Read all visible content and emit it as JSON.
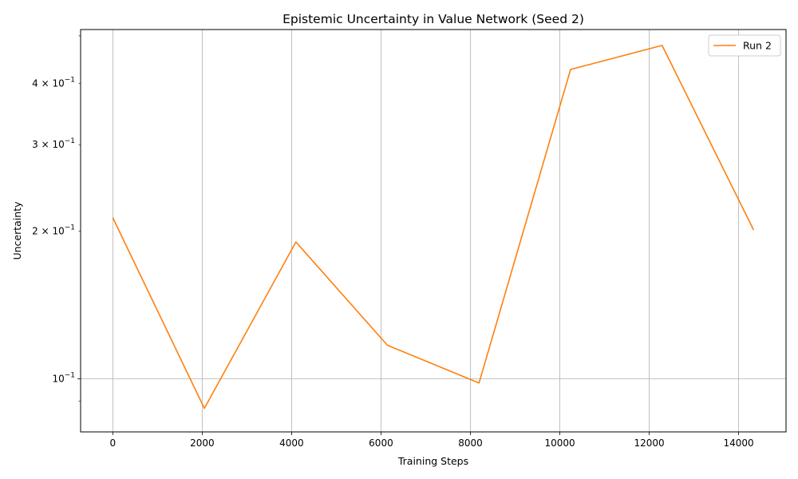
{
  "chart_data": {
    "type": "line",
    "title": "Epistemic Uncertainty in Value Network (Seed 2)",
    "xlabel": "Training Steps",
    "ylabel": "Uncertainty",
    "yscale": "log",
    "xlim": [
      -720,
      15060
    ],
    "ylim": [
      0.0779,
      0.515
    ],
    "x_ticks": [
      0,
      2000,
      4000,
      6000,
      8000,
      10000,
      12000,
      14000
    ],
    "x_tick_labels": [
      "0",
      "2000",
      "4000",
      "6000",
      "8000",
      "10000",
      "12000",
      "14000"
    ],
    "y_major_ticks": [
      0.1
    ],
    "y_minor_ticks": [
      0.09,
      0.2,
      0.3,
      0.4,
      0.5
    ],
    "y_tick_labels": [
      {
        "value": 0.1,
        "base": "10",
        "exp": "−1",
        "coef": ""
      },
      {
        "value": 0.2,
        "base": "10",
        "exp": "−1",
        "coef": "2 × "
      },
      {
        "value": 0.3,
        "base": "10",
        "exp": "−1",
        "coef": "3 × "
      },
      {
        "value": 0.4,
        "base": "10",
        "exp": "−1",
        "coef": "4 × "
      }
    ],
    "grid": true,
    "grid_axis": "x major, y major",
    "legend_position": "top-right",
    "series": [
      {
        "name": "Run 2",
        "color": "#ff7f0e",
        "x": [
          0,
          2048,
          4096,
          6144,
          8192,
          10240,
          12288,
          14336
        ],
        "y": [
          0.213,
          0.087,
          0.19,
          0.117,
          0.098,
          0.427,
          0.478,
          0.201
        ]
      }
    ]
  }
}
